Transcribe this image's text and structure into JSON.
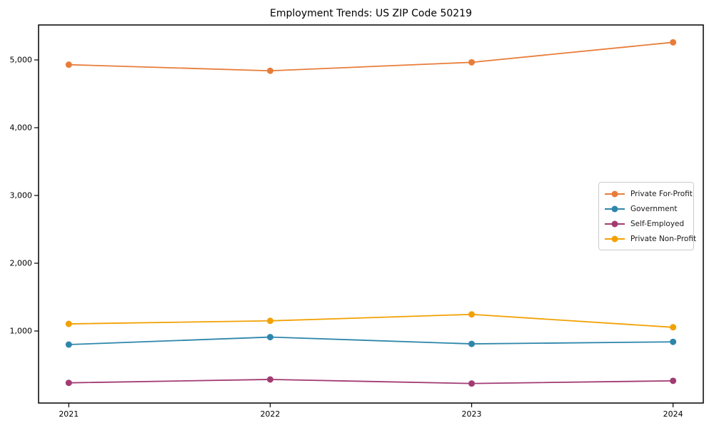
{
  "chart_data": {
    "type": "line",
    "title": "Employment Trends: US ZIP Code 50219",
    "x": [
      2021,
      2022,
      2023,
      2024
    ],
    "series": [
      {
        "name": "Private For-Profit",
        "color": "#E87D3A",
        "values": [
          4930,
          4840,
          4965,
          5260
        ]
      },
      {
        "name": "Government",
        "color": "#2E86AB",
        "values": [
          800,
          910,
          810,
          840
        ]
      },
      {
        "name": "Self-Employed",
        "color": "#A23B72",
        "values": [
          235,
          285,
          225,
          265
        ]
      },
      {
        "name": "Private Non-Profit",
        "color": "#F2A104",
        "values": [
          1105,
          1150,
          1245,
          1055
        ]
      }
    ],
    "xlabel": "",
    "ylabel": "",
    "yticks": [
      1000,
      2000,
      3000,
      4000,
      5000
    ],
    "ytick_labels": [
      "1,000",
      "2,000",
      "3,000",
      "4,000",
      "5,000"
    ],
    "xtick_labels": [
      "2021",
      "2022",
      "2023",
      "2024"
    ],
    "ylim": [
      -63,
      5516
    ],
    "xlim": [
      2020.85,
      2024.15
    ],
    "grid": false,
    "legend_position": "center-right",
    "axis_color": "#000000",
    "background_color": "#ffffff",
    "marker": "circle",
    "marker_radius": 4.5,
    "line_width": 1.8
  }
}
